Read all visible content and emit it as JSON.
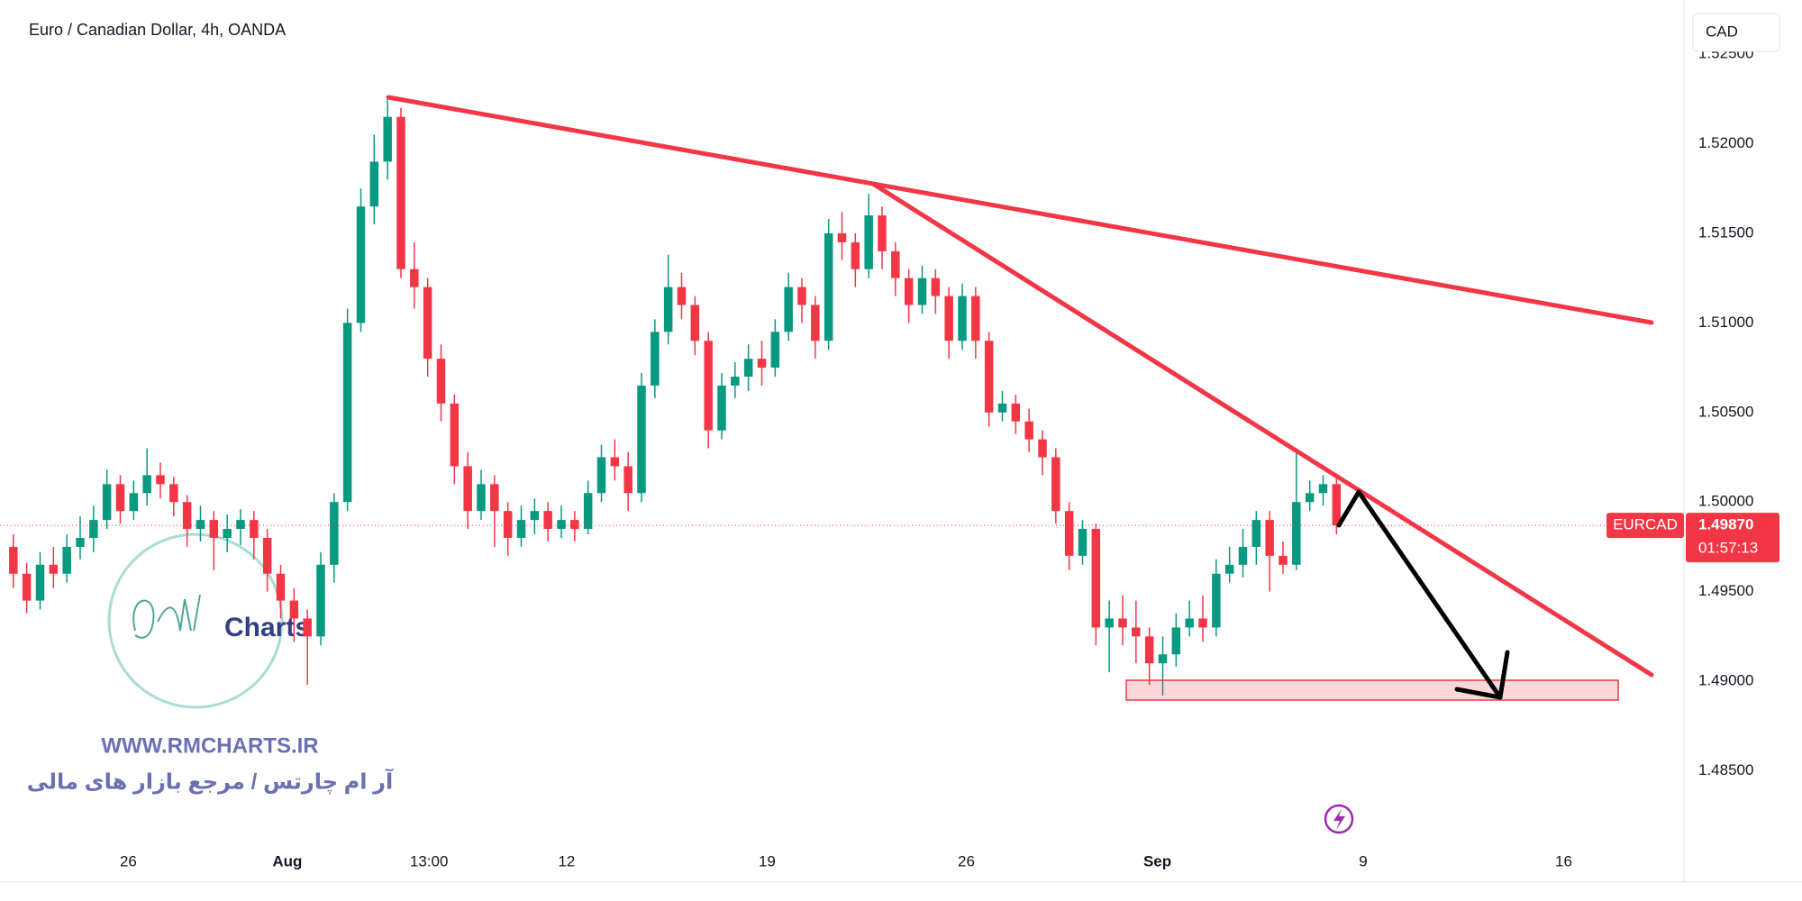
{
  "chart_data": {
    "type": "candlestick",
    "title": "Euro / Canadian Dollar, 4h, OANDA",
    "currency": "CAD",
    "symbol": "EURCAD",
    "last_price": 1.4987,
    "last_price_label": "1.49870",
    "countdown": "01:57:13",
    "up_color": "#089981",
    "down_color": "#f23645",
    "grid": false,
    "watermark": {
      "logo": "Charts",
      "url": "WWW.RMCHARTS.IR",
      "tagline": "آر ام چارتس / مرجع بازار های مالی"
    },
    "x": [
      1,
      2,
      3,
      4,
      5,
      6,
      7,
      8,
      9,
      10,
      11,
      12,
      13,
      14,
      15,
      16,
      17,
      18,
      19,
      20,
      21,
      22,
      23,
      24,
      25,
      26,
      27,
      28,
      29,
      30,
      31,
      32,
      33,
      34,
      35,
      36,
      37,
      38,
      39,
      40,
      41,
      42,
      43,
      44,
      45,
      46,
      47,
      48,
      49,
      50,
      51,
      52,
      53,
      54,
      55,
      56,
      57,
      58,
      59,
      60,
      61,
      62,
      63,
      64,
      65,
      66,
      67,
      68,
      69,
      70,
      71,
      72,
      73,
      74,
      75,
      76,
      77,
      78,
      79,
      80,
      81,
      82,
      83,
      84,
      85,
      86,
      87,
      88,
      89,
      90,
      91,
      92,
      93,
      94,
      95,
      96,
      97,
      98,
      99,
      100
    ],
    "open": [
      1.4975,
      1.496,
      1.4945,
      1.4965,
      1.496,
      1.4975,
      1.498,
      1.499,
      1.501,
      1.4995,
      1.5005,
      1.5015,
      1.501,
      1.5,
      1.4985,
      1.499,
      1.498,
      1.4985,
      1.499,
      1.498,
      1.496,
      1.4945,
      1.4935,
      1.4925,
      1.4965,
      1.5,
      1.51,
      1.5165,
      1.519,
      1.5215,
      1.513,
      1.512,
      1.508,
      1.5055,
      1.502,
      1.4995,
      1.501,
      1.4995,
      1.498,
      1.499,
      1.4995,
      1.4985,
      1.499,
      1.4985,
      1.5005,
      1.5025,
      1.502,
      1.5005,
      1.5065,
      1.5095,
      1.512,
      1.511,
      1.509,
      1.504,
      1.5065,
      1.507,
      1.508,
      1.5075,
      1.5095,
      1.512,
      1.511,
      1.509,
      1.515,
      1.5145,
      1.513,
      1.516,
      1.514,
      1.5125,
      1.511,
      1.5125,
      1.5115,
      1.509,
      1.5115,
      1.509,
      1.505,
      1.5055,
      1.5045,
      1.5035,
      1.5025,
      1.4995,
      1.497,
      1.4985,
      1.493,
      1.4935,
      1.493,
      1.4925,
      1.491,
      1.4915,
      1.493,
      1.4935,
      1.493,
      1.496,
      1.4965,
      1.4975,
      1.499,
      1.497,
      1.4965,
      1.5,
      1.5005,
      1.501
    ],
    "high": [
      1.4982,
      1.4966,
      1.4972,
      1.4975,
      1.4982,
      1.4992,
      1.4998,
      1.5018,
      1.5015,
      1.5012,
      1.503,
      1.5022,
      1.5014,
      1.5004,
      1.4998,
      1.4995,
      1.4993,
      1.4996,
      1.4995,
      1.4985,
      1.4965,
      1.4952,
      1.494,
      1.4972,
      1.5005,
      1.5108,
      1.5175,
      1.5205,
      1.5227,
      1.522,
      1.5145,
      1.5125,
      1.5088,
      1.506,
      1.5028,
      1.5018,
      1.5015,
      1.5,
      1.4998,
      1.5002,
      1.5,
      1.4998,
      1.4995,
      1.5012,
      1.5032,
      1.5035,
      1.5028,
      1.5072,
      1.5102,
      1.5138,
      1.5128,
      1.5115,
      1.5095,
      1.5072,
      1.5078,
      1.5088,
      1.509,
      1.5102,
      1.5128,
      1.5125,
      1.5115,
      1.5158,
      1.5162,
      1.515,
      1.5172,
      1.5165,
      1.5145,
      1.513,
      1.5132,
      1.513,
      1.512,
      1.5122,
      1.512,
      1.5095,
      1.5062,
      1.506,
      1.5052,
      1.504,
      1.503,
      1.5,
      1.499,
      1.4988,
      1.4945,
      1.4948,
      1.4945,
      1.493,
      1.4925,
      1.4938,
      1.4945,
      1.4948,
      1.4968,
      1.4975,
      1.4985,
      1.4995,
      1.4995,
      1.4978,
      1.5028,
      1.5012,
      1.5015,
      1.5014
    ],
    "low": [
      1.4952,
      1.4938,
      1.494,
      1.4952,
      1.4955,
      1.4968,
      1.4972,
      1.4985,
      1.4988,
      1.499,
      1.4998,
      1.5002,
      1.4992,
      1.4975,
      1.4978,
      1.4962,
      1.4972,
      1.4976,
      1.4968,
      1.495,
      1.4935,
      1.4922,
      1.4898,
      1.492,
      1.4955,
      1.4995,
      1.5095,
      1.5155,
      1.518,
      1.5125,
      1.5108,
      1.507,
      1.5045,
      1.501,
      1.4985,
      1.499,
      1.4975,
      1.497,
      1.4975,
      1.4982,
      1.4978,
      1.498,
      1.4978,
      1.4982,
      1.5,
      1.5012,
      1.4995,
      1.5,
      1.5058,
      1.5088,
      1.5102,
      1.5082,
      1.503,
      1.5035,
      1.5058,
      1.5062,
      1.5065,
      1.507,
      1.509,
      1.51,
      1.508,
      1.5085,
      1.5135,
      1.512,
      1.5125,
      1.513,
      1.5115,
      1.51,
      1.5105,
      1.5105,
      1.508,
      1.5085,
      1.508,
      1.5042,
      1.5045,
      1.5038,
      1.5028,
      1.5015,
      1.4988,
      1.4962,
      1.4965,
      1.492,
      1.4905,
      1.492,
      1.491,
      1.4898,
      1.4892,
      1.4908,
      1.4925,
      1.4922,
      1.4925,
      1.4955,
      1.4958,
      1.4965,
      1.495,
      1.496,
      1.4962,
      1.4995,
      1.4998,
      1.4982
    ],
    "close": [
      1.496,
      1.4945,
      1.4965,
      1.496,
      1.4975,
      1.498,
      1.499,
      1.501,
      1.4995,
      1.5005,
      1.5015,
      1.501,
      1.5,
      1.4985,
      1.499,
      1.498,
      1.4985,
      1.499,
      1.498,
      1.496,
      1.4945,
      1.4935,
      1.4925,
      1.4965,
      1.5,
      1.51,
      1.5165,
      1.519,
      1.5215,
      1.513,
      1.512,
      1.508,
      1.5055,
      1.502,
      1.4995,
      1.501,
      1.4995,
      1.498,
      1.499,
      1.4995,
      1.4985,
      1.499,
      1.4985,
      1.5005,
      1.5025,
      1.502,
      1.5005,
      1.5065,
      1.5095,
      1.512,
      1.511,
      1.509,
      1.504,
      1.5065,
      1.507,
      1.508,
      1.5075,
      1.5095,
      1.512,
      1.511,
      1.509,
      1.515,
      1.5145,
      1.513,
      1.516,
      1.514,
      1.5125,
      1.511,
      1.5125,
      1.5115,
      1.509,
      1.5115,
      1.509,
      1.505,
      1.5055,
      1.5045,
      1.5035,
      1.5025,
      1.4995,
      1.497,
      1.4985,
      1.493,
      1.4935,
      1.493,
      1.4925,
      1.491,
      1.4915,
      1.493,
      1.4935,
      1.493,
      1.496,
      1.4965,
      1.4975,
      1.499,
      1.497,
      1.4965,
      1.5,
      1.5005,
      1.501,
      1.4987
    ],
    "xlim": [
      0,
      126
    ],
    "xticks": [
      {
        "value": 9.6,
        "label": "26"
      },
      {
        "value": 21.5,
        "label": "Aug"
      },
      {
        "value": 32.1,
        "label": "13:00"
      },
      {
        "value": 42.4,
        "label": "12"
      },
      {
        "value": 57.4,
        "label": "19"
      },
      {
        "value": 72.3,
        "label": "26"
      },
      {
        "value": 86.6,
        "label": "Sep"
      },
      {
        "value": 102,
        "label": "9"
      },
      {
        "value": 117,
        "label": "16"
      }
    ],
    "ylim": [
      1.4809,
      1.52737
    ],
    "yticks": [
      {
        "value": 1.485,
        "label": "1.48500"
      },
      {
        "value": 1.49,
        "label": "1.49000"
      },
      {
        "value": 1.495,
        "label": "1.49500"
      },
      {
        "value": 1.5,
        "label": "1.50000"
      },
      {
        "value": 1.505,
        "label": "1.50500"
      },
      {
        "value": 1.51,
        "label": "1.51000"
      },
      {
        "value": 1.515,
        "label": "1.51500"
      },
      {
        "value": 1.52,
        "label": "1.52000"
      },
      {
        "value": 1.525,
        "label": "1.52500"
      }
    ]
  }
}
